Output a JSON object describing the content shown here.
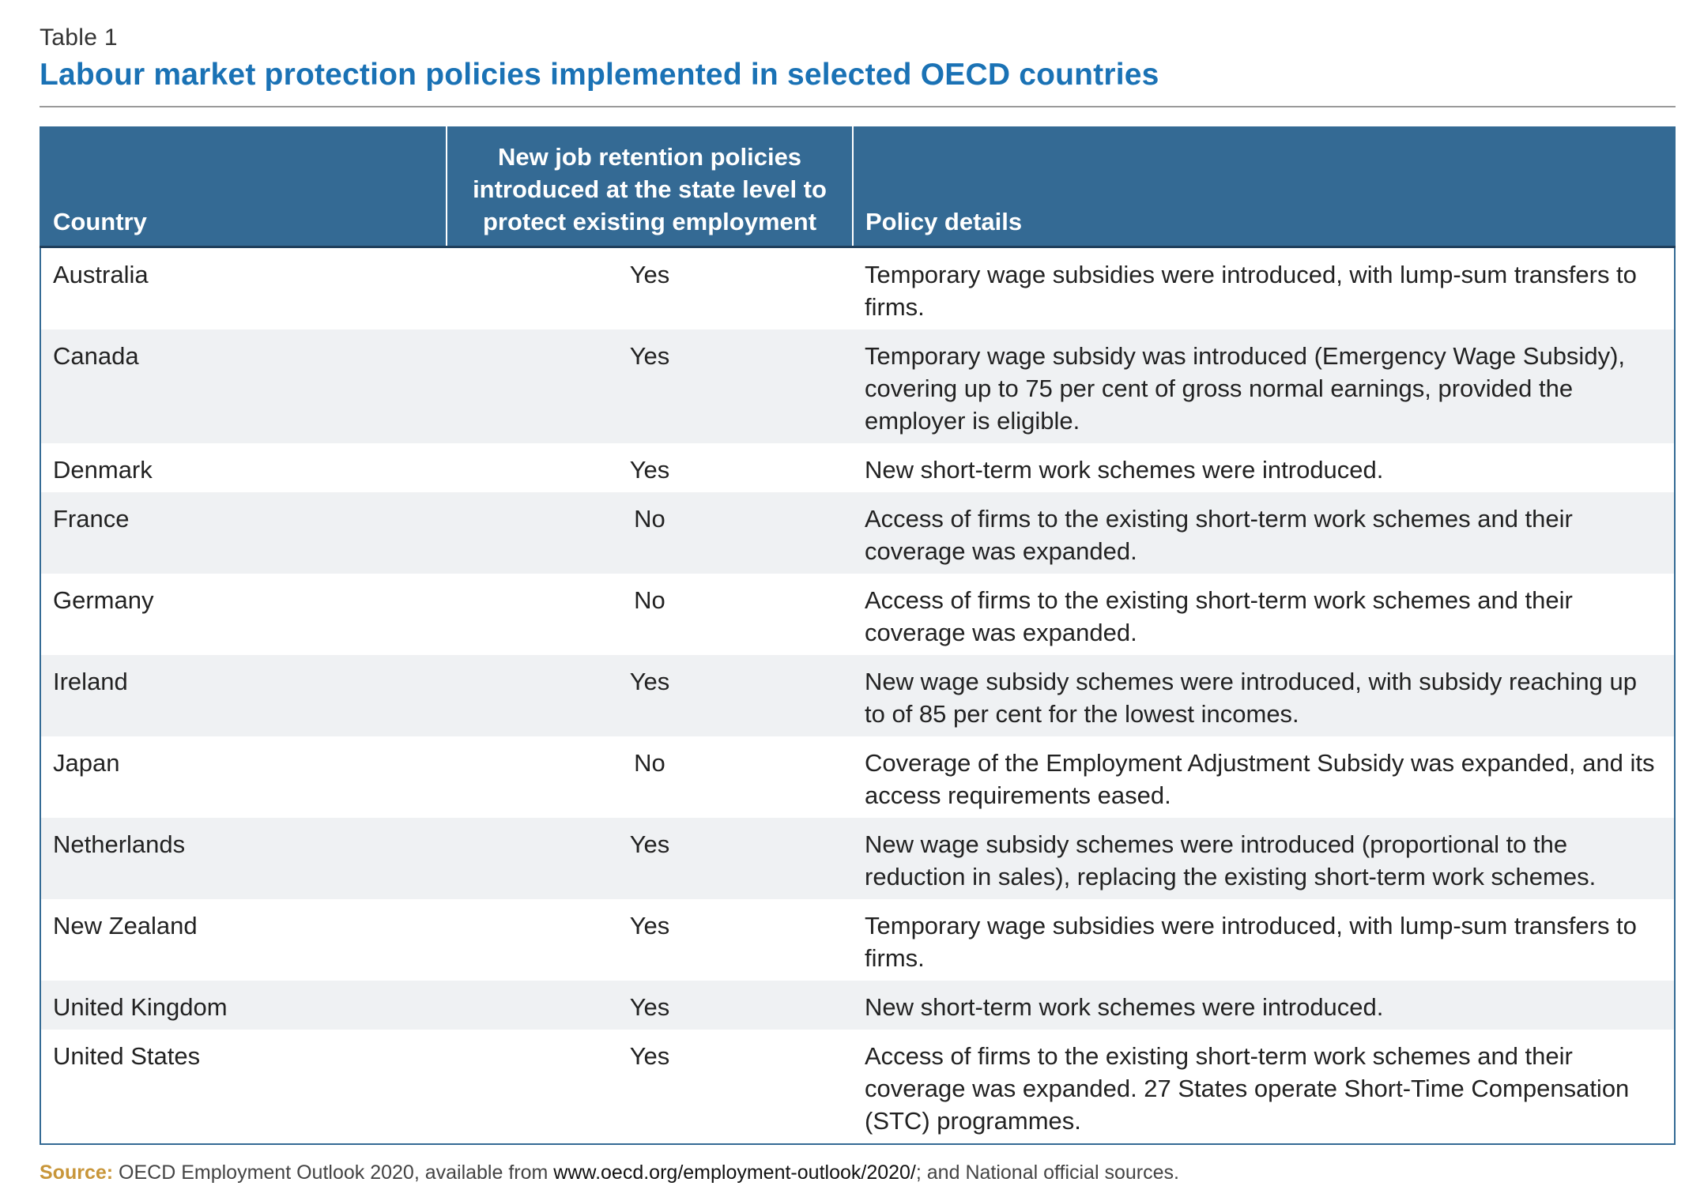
{
  "header": {
    "label": "Table 1",
    "title": "Labour market protection policies implemented in selected OECD countries"
  },
  "table": {
    "columns": [
      "Country",
      "New job retention policies introduced at the state level to protect existing employment",
      "Policy details"
    ],
    "rows": [
      {
        "country": "Australia",
        "retention": "Yes",
        "details": "Temporary wage subsidies were introduced, with lump-sum transfers to firms."
      },
      {
        "country": "Canada",
        "retention": "Yes",
        "details": "Temporary wage subsidy was introduced (Emergency Wage Subsidy), covering up to 75 per cent of gross normal earnings, provided the employer is eligible."
      },
      {
        "country": "Denmark",
        "retention": "Yes",
        "details": "New short-term work schemes were introduced."
      },
      {
        "country": "France",
        "retention": "No",
        "details": "Access of firms to the existing short-term work schemes and their coverage was expanded."
      },
      {
        "country": "Germany",
        "retention": "No",
        "details": "Access of firms to the existing short-term work schemes and their coverage was expanded."
      },
      {
        "country": "Ireland",
        "retention": "Yes",
        "details": "New wage subsidy schemes were introduced, with subsidy reaching up to of 85 per cent for the lowest incomes."
      },
      {
        "country": "Japan",
        "retention": "No",
        "details": "Coverage of the Employment Adjustment Subsidy was expanded, and its access requirements eased."
      },
      {
        "country": "Netherlands",
        "retention": "Yes",
        "details": "New wage subsidy schemes were introduced (proportional to the reduction in sales), replacing the existing short-term work schemes."
      },
      {
        "country": "New Zealand",
        "retention": "Yes",
        "details": "Temporary wage subsidies were introduced, with lump-sum transfers to firms."
      },
      {
        "country": "United Kingdom",
        "retention": "Yes",
        "details": "New short-term work schemes were introduced."
      },
      {
        "country": "United States",
        "retention": "Yes",
        "details": "Access of firms to the existing short-term work schemes and their coverage was expanded. 27 States operate Short-Time Compensation (STC) programmes."
      }
    ]
  },
  "source": {
    "label": "Source:",
    "text_before": " OECD Employment Outlook 2020, available from ",
    "link": "www.oecd.org/employment-outlook/2020/",
    "text_after": "; and National official sources."
  },
  "colors": {
    "header_bg": "#346a94",
    "title": "#1a72b5",
    "source_label": "#c8963a",
    "stripe": "#eff1f3"
  }
}
